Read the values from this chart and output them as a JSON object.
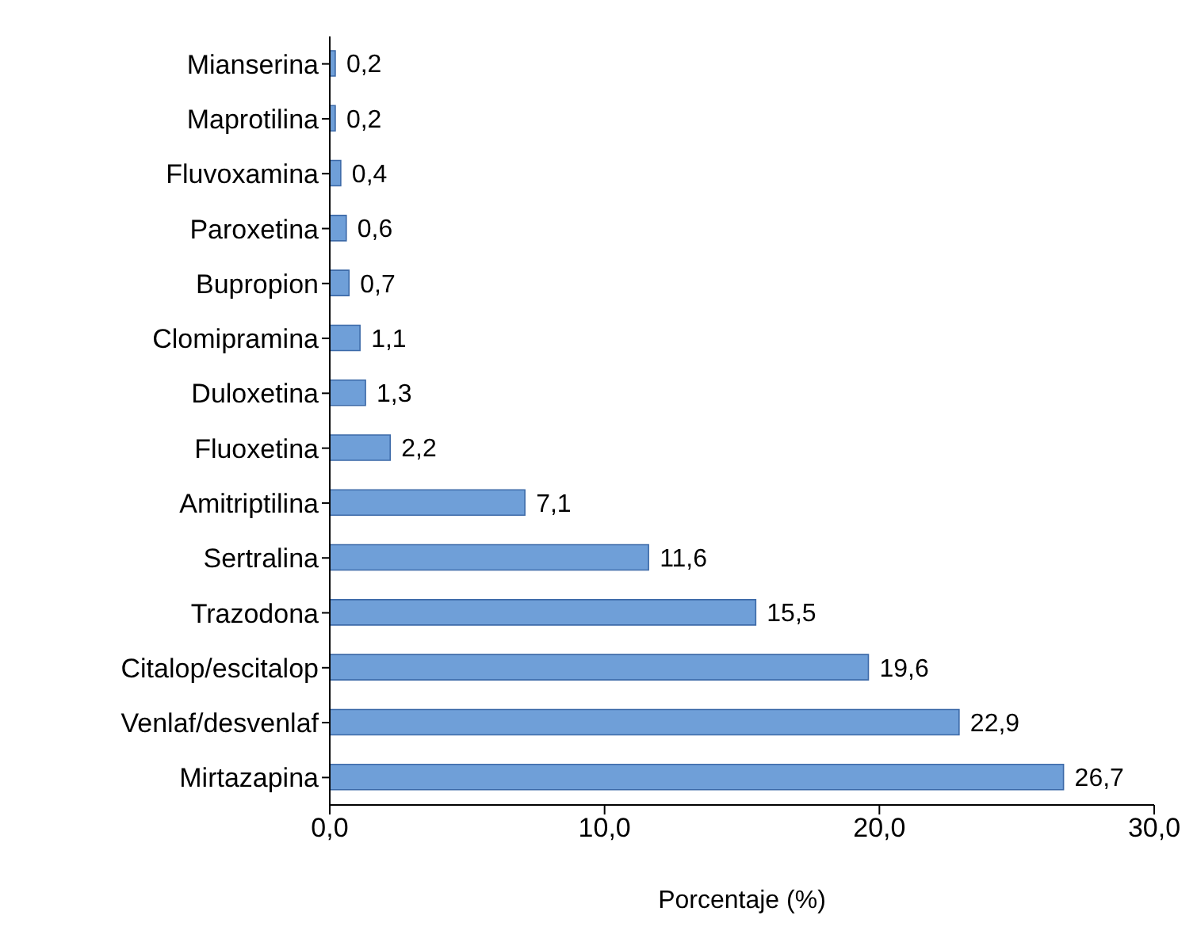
{
  "chart_data": {
    "type": "bar",
    "orientation": "horizontal",
    "xlabel": "Porcentaje (%)",
    "categories": [
      "Mianserina",
      "Maprotilina",
      "Fluvoxamina",
      "Paroxetina",
      "Bupropion",
      "Clomipramina",
      "Duloxetina",
      "Fluoxetina",
      "Amitriptilina",
      "Sertralina",
      "Trazodona",
      "Citalop/escitalop",
      "Venlaf/desvenlaf",
      "Mirtazapina"
    ],
    "values": [
      0.2,
      0.2,
      0.4,
      0.6,
      0.7,
      1.1,
      1.3,
      2.2,
      7.1,
      11.6,
      15.5,
      19.6,
      22.9,
      26.7
    ],
    "value_labels": [
      "0,2",
      "0,2",
      "0,4",
      "0,6",
      "0,7",
      "1,1",
      "1,3",
      "2,2",
      "7,1",
      "11,6",
      "15,5",
      "19,6",
      "22,9",
      "26,7"
    ],
    "color": "#6f9fd8",
    "xlim": [
      0,
      30
    ],
    "xticks": [
      {
        "value": 0,
        "label": "0,0"
      },
      {
        "value": 10,
        "label": "10,0"
      },
      {
        "value": 20,
        "label": "20,0"
      },
      {
        "value": 30,
        "label": "30,0"
      }
    ],
    "grid": false,
    "legend": false
  }
}
